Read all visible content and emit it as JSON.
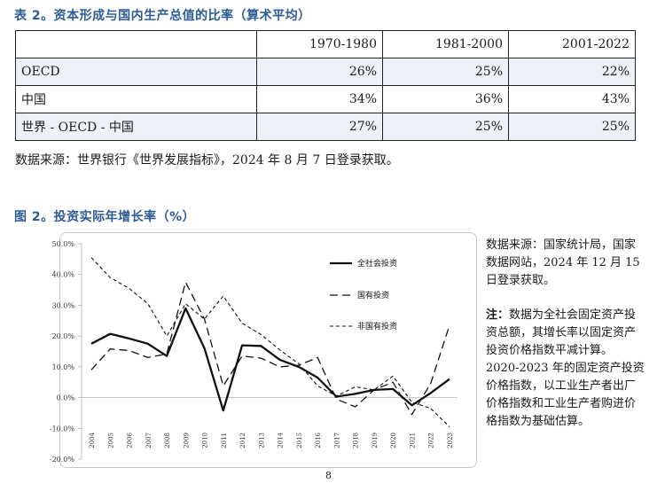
{
  "table": {
    "title": "表 2。资本形成与国内生产总值的比率（算术平均）",
    "columns": [
      "",
      "1970-1980",
      "1981-2000",
      "2001-2022"
    ],
    "rows": [
      [
        "OECD",
        "26%",
        "25%",
        "22%"
      ],
      [
        "中国",
        "34%",
        "36%",
        "43%"
      ],
      [
        "世界 - OECD - 中国",
        "27%",
        "25%",
        "25%"
      ]
    ],
    "source": "数据来源：世界银行《世界发展指标》，2024 年 8 月 7 日登录获取。"
  },
  "figure": {
    "title": "图 2。投资实际年增长率（%）",
    "source_text": "数据来源：国家统计局，国家数据网站，2024 年 12 月 15 日登录获取。",
    "note_label": "注：",
    "note_text": "数据为全社会固定资产投资总额，其增长率以固定资产投资价格指数平减计算。2020-2023 年的固定资产投资价格指数，以工业生产者出厂价格指数和工业生产者购进价格指数为基础估算。"
  },
  "chart_data": {
    "type": "line",
    "x": [
      "2004",
      "2005",
      "2006",
      "2007",
      "2008",
      "2009",
      "2010",
      "2011",
      "2012",
      "2013",
      "2014",
      "2015",
      "2016",
      "2017",
      "2018",
      "2019",
      "2020",
      "2021",
      "2022",
      "2023"
    ],
    "y_ticks": [
      "50.0%",
      "40.0%",
      "30.0%",
      "20.0%",
      "10.0%",
      "0.0%",
      "-10.0%",
      "-20.0%"
    ],
    "ylim": [
      -20,
      50
    ],
    "legend_position": "top-right",
    "series": [
      {
        "name": "全社会投资",
        "style": "solid",
        "values": [
          17.5,
          20.7,
          19.2,
          17.5,
          13.5,
          29,
          16,
          -4.2,
          17,
          16.8,
          12.3,
          10,
          6.5,
          0.3,
          1.2,
          2.5,
          2.8,
          -2.5,
          1.5,
          6
        ]
      },
      {
        "name": "国有投资",
        "style": "dashed",
        "values": [
          9,
          15.8,
          15.3,
          13,
          14.2,
          37.5,
          25.5,
          3.8,
          13.5,
          12.8,
          10,
          10.5,
          13,
          -0.5,
          -3,
          2.5,
          5,
          -5.5,
          4.5,
          23.5
        ]
      },
      {
        "name": "非国有投资",
        "style": "dotted",
        "values": [
          45.5,
          39,
          35.5,
          30.5,
          20,
          30.5,
          25.5,
          33,
          24.2,
          20.5,
          15.5,
          11,
          3.8,
          0.5,
          3.5,
          2.5,
          7,
          -1.5,
          -3.5,
          -9.5
        ]
      }
    ]
  },
  "page_number": "8"
}
